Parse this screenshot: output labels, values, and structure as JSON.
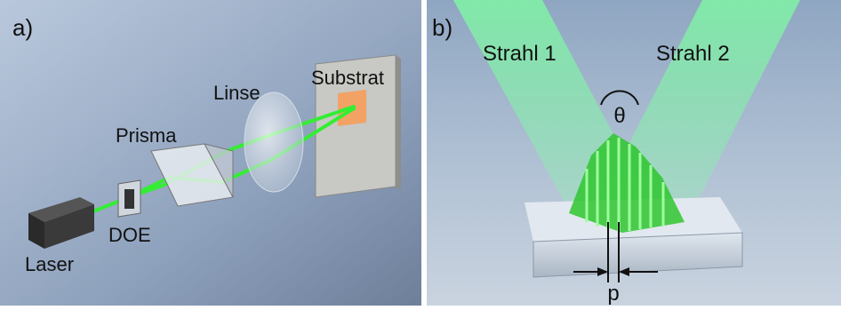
{
  "panel_a": {
    "label": "a)",
    "components": {
      "laser": "Laser",
      "doe": "DOE",
      "prism": "Prisma",
      "lens": "Linse",
      "substrate": "Substrat"
    }
  },
  "panel_b": {
    "label": "b)",
    "beam_1": "Strahl 1",
    "beam_2": "Strahl 2",
    "angle": "θ",
    "period": "p"
  }
}
